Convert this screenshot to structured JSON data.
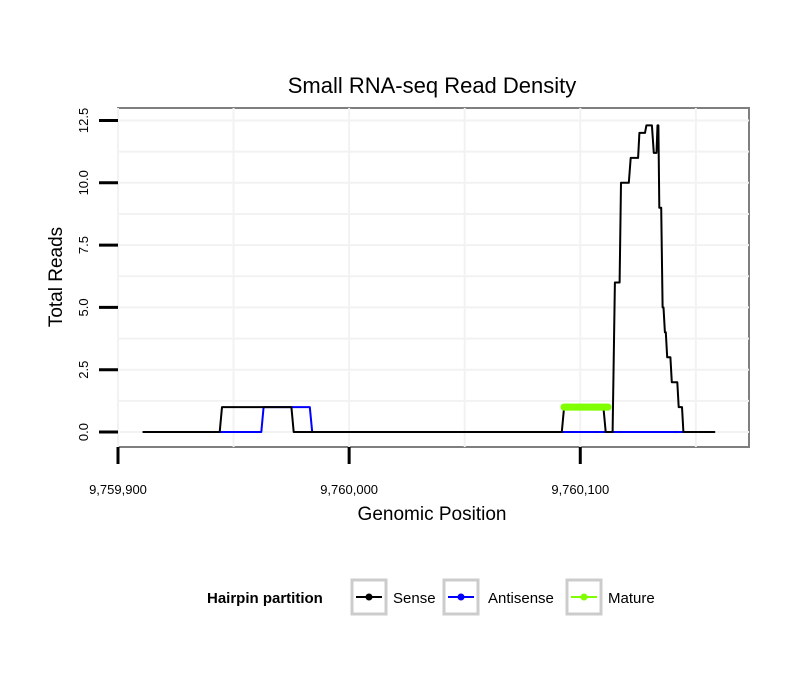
{
  "chart_data": {
    "type": "line",
    "title": "Small RNA-seq Read Density",
    "xlabel": "Genomic Position",
    "ylabel": "Total Reads",
    "xlim": [
      9759900,
      9760173
    ],
    "ylim": [
      -0.6,
      13.0
    ],
    "x_ticks": [
      9759900,
      9760000,
      9760100
    ],
    "x_tick_labels": [
      "9,759,900",
      "9,760,000",
      "9,760,100"
    ],
    "y_ticks": [
      0,
      2.5,
      5,
      7.5,
      10,
      12.5
    ],
    "y_tick_labels": [
      "0.0",
      "2.5",
      "5.0",
      "7.5",
      "10.0",
      "12.5"
    ],
    "grid": true,
    "legend": {
      "title": "Hairpin partition",
      "position": "bottom",
      "entries": [
        {
          "label": "Sense",
          "color": "#000000"
        },
        {
          "label": "Antisense",
          "color": "#0000ff"
        },
        {
          "label": "Mature",
          "color": "#7fff00"
        }
      ]
    },
    "series": [
      {
        "name": "Sense",
        "color": "#000000",
        "x": [
          9759911,
          9759944,
          9759945,
          9759962,
          9759963,
          9759975,
          9759976,
          9760092,
          9760093,
          9760110,
          9760111,
          9760114,
          9760115,
          9760117,
          9760117.6,
          9760121,
          9760121.8,
          9760125,
          9760125.6,
          9760128,
          9760128.6,
          9760131,
          9760131.8,
          9760133,
          9760133.4,
          9760133.8,
          9760134.2,
          9760135,
          9760135.6,
          9760136,
          9760136.6,
          9760137,
          9760137.6,
          9760139,
          9760139.6,
          9760142,
          9760142.6,
          9760144,
          9760144.6,
          9760145,
          9760145.6,
          9760147,
          9760147.6,
          9760158
        ],
        "y": [
          0,
          0,
          1,
          1,
          1,
          1,
          0,
          0,
          1,
          1,
          0,
          0,
          6,
          6,
          10,
          10,
          11,
          11,
          12,
          12,
          12.3,
          12.3,
          11.2,
          11.2,
          12.3,
          12.3,
          9,
          9,
          5,
          5,
          4,
          4,
          3,
          3,
          2,
          2,
          1,
          1,
          0,
          0,
          0,
          0,
          0,
          0
        ]
      },
      {
        "name": "Antisense",
        "color": "#0000ff",
        "x": [
          9759911,
          9759962,
          9759963,
          9759983,
          9759984,
          9760092,
          9760093,
          9760110,
          9760111,
          9760158
        ],
        "y": [
          0,
          0,
          1,
          1,
          0,
          0,
          0,
          0,
          0,
          0
        ]
      },
      {
        "name": "Mature",
        "color": "#7fff00",
        "x": [
          9760093,
          9760112
        ],
        "y": [
          1,
          1
        ]
      }
    ]
  }
}
